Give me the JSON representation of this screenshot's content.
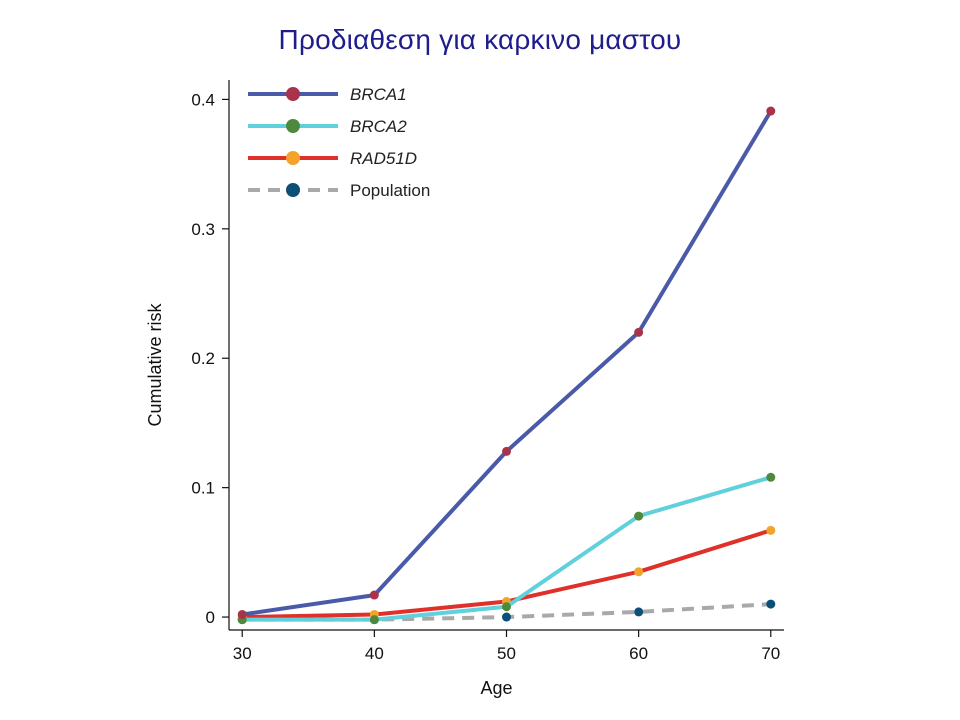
{
  "slide": {
    "title": "Προδιαθεση για καρκινο μαστου"
  },
  "chart_data": {
    "type": "line",
    "title": "",
    "xlabel": "Age",
    "ylabel": "Cumulative risk",
    "x": [
      30,
      40,
      50,
      60,
      70
    ],
    "xlim": [
      29,
      71
    ],
    "ylim": [
      -0.01,
      0.415
    ],
    "x_ticks": [
      30,
      40,
      50,
      60,
      70
    ],
    "y_ticks": [
      0,
      0.1,
      0.2,
      0.3,
      0.4
    ],
    "y_tick_labels": [
      "0",
      "0.1",
      "0.2",
      "0.3",
      "0.4"
    ],
    "grid": false,
    "legend_placement": "top-left",
    "series": [
      {
        "name": "BRCA1",
        "name_style": "italic",
        "values": [
          0.002,
          0.017,
          0.128,
          0.22,
          0.391
        ],
        "line_color": "#4a5aa8",
        "marker_color": "#a8334a",
        "dash": "solid"
      },
      {
        "name": "BRCA2",
        "name_style": "italic",
        "values": [
          -0.002,
          -0.002,
          0.008,
          0.078,
          0.108
        ],
        "line_color": "#5fd0dc",
        "marker_color": "#4e8a3e",
        "dash": "solid"
      },
      {
        "name": "RAD51D",
        "name_style": "italic",
        "values": [
          0.0,
          0.002,
          0.012,
          0.035,
          0.067
        ],
        "line_color": "#e0302a",
        "marker_color": "#f3a22a",
        "dash": "solid"
      },
      {
        "name": "Population",
        "name_style": "normal",
        "values": [
          -0.002,
          -0.002,
          0.0,
          0.004,
          0.01
        ],
        "line_color": "#a9a9a9",
        "marker_color": "#0e4f78",
        "dash": "dashed"
      }
    ]
  }
}
